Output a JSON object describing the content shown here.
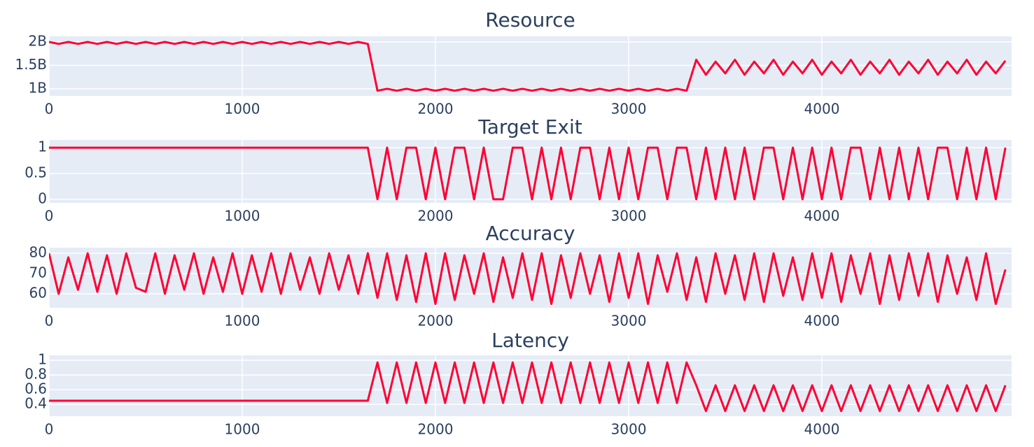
{
  "chart_data": [
    {
      "type": "line",
      "title": "Resource",
      "color": "#ff0033",
      "grid": true,
      "x": [
        0,
        50,
        100,
        150,
        200,
        250,
        300,
        350,
        400,
        450,
        500,
        550,
        600,
        650,
        700,
        750,
        800,
        850,
        900,
        950,
        1000,
        1050,
        1100,
        1150,
        1200,
        1250,
        1300,
        1350,
        1400,
        1450,
        1500,
        1550,
        1600,
        1650,
        1700,
        1750,
        1800,
        1850,
        1900,
        1950,
        2000,
        2050,
        2100,
        2150,
        2200,
        2250,
        2300,
        2350,
        2400,
        2450,
        2500,
        2550,
        2600,
        2650,
        2700,
        2750,
        2800,
        2850,
        2900,
        2950,
        3000,
        3050,
        3100,
        3150,
        3200,
        3250,
        3300,
        3350,
        3400,
        3450,
        3500,
        3550,
        3600,
        3650,
        3700,
        3750,
        3800,
        3850,
        3900,
        3950,
        4000,
        4050,
        4100,
        4150,
        4200,
        4250,
        4300,
        4350,
        4400,
        4450,
        4500,
        4550,
        4600,
        4650,
        4700,
        4750,
        4800,
        4850,
        4900,
        4950
      ],
      "values": [
        2000000000.0,
        1960000000.0,
        2000000000.0,
        1960000000.0,
        2000000000.0,
        1960000000.0,
        2000000000.0,
        1960000000.0,
        2000000000.0,
        1960000000.0,
        2000000000.0,
        1960000000.0,
        2000000000.0,
        1960000000.0,
        2000000000.0,
        1960000000.0,
        2000000000.0,
        1960000000.0,
        2000000000.0,
        1960000000.0,
        2000000000.0,
        1960000000.0,
        2000000000.0,
        1960000000.0,
        2000000000.0,
        1960000000.0,
        2000000000.0,
        1960000000.0,
        2000000000.0,
        1960000000.0,
        2000000000.0,
        1960000000.0,
        2000000000.0,
        1960000000.0,
        960000000.0,
        1000000000.0,
        960000000.0,
        1000000000.0,
        960000000.0,
        1000000000.0,
        960000000.0,
        1000000000.0,
        960000000.0,
        1000000000.0,
        960000000.0,
        1000000000.0,
        960000000.0,
        1000000000.0,
        960000000.0,
        1000000000.0,
        960000000.0,
        1000000000.0,
        960000000.0,
        1000000000.0,
        960000000.0,
        1000000000.0,
        960000000.0,
        1000000000.0,
        960000000.0,
        1000000000.0,
        960000000.0,
        1000000000.0,
        960000000.0,
        1000000000.0,
        960000000.0,
        1000000000.0,
        960000000.0,
        1620000000.0,
        1300000000.0,
        1580000000.0,
        1330000000.0,
        1620000000.0,
        1300000000.0,
        1580000000.0,
        1330000000.0,
        1620000000.0,
        1300000000.0,
        1580000000.0,
        1330000000.0,
        1620000000.0,
        1300000000.0,
        1580000000.0,
        1330000000.0,
        1620000000.0,
        1300000000.0,
        1580000000.0,
        1330000000.0,
        1620000000.0,
        1300000000.0,
        1580000000.0,
        1330000000.0,
        1620000000.0,
        1300000000.0,
        1580000000.0,
        1330000000.0,
        1620000000.0,
        1300000000.0,
        1580000000.0,
        1330000000.0,
        1600000000.0
      ],
      "xlim": [
        0,
        4982
      ],
      "xticks": [
        0,
        1000,
        2000,
        3000,
        4000
      ],
      "ylim": [
        850000000,
        2120000000
      ],
      "yticks": [
        {
          "value": 1000000000,
          "label": "1B"
        },
        {
          "value": 1500000000,
          "label": "1.5B"
        },
        {
          "value": 2000000000,
          "label": "2B"
        }
      ]
    },
    {
      "type": "line",
      "title": "Target Exit",
      "color": "#ff0033",
      "grid": true,
      "x": [
        0,
        50,
        100,
        150,
        200,
        250,
        300,
        350,
        400,
        450,
        500,
        550,
        600,
        650,
        700,
        750,
        800,
        850,
        900,
        950,
        1000,
        1050,
        1100,
        1150,
        1200,
        1250,
        1300,
        1350,
        1400,
        1450,
        1500,
        1550,
        1600,
        1650,
        1700,
        1750,
        1800,
        1850,
        1900,
        1950,
        2000,
        2050,
        2100,
        2150,
        2200,
        2250,
        2300,
        2350,
        2400,
        2450,
        2500,
        2550,
        2600,
        2650,
        2700,
        2750,
        2800,
        2850,
        2900,
        2950,
        3000,
        3050,
        3100,
        3150,
        3200,
        3250,
        3300,
        3350,
        3400,
        3450,
        3500,
        3550,
        3600,
        3650,
        3700,
        3750,
        3800,
        3850,
        3900,
        3950,
        4000,
        4050,
        4100,
        4150,
        4200,
        4250,
        4300,
        4350,
        4400,
        4450,
        4500,
        4550,
        4600,
        4650,
        4700,
        4750,
        4800,
        4850,
        4900,
        4950
      ],
      "values": [
        1,
        1,
        1,
        1,
        1,
        1,
        1,
        1,
        1,
        1,
        1,
        1,
        1,
        1,
        1,
        1,
        1,
        1,
        1,
        1,
        1,
        1,
        1,
        1,
        1,
        1,
        1,
        1,
        1,
        1,
        1,
        1,
        1,
        1,
        0,
        1,
        0,
        1,
        1,
        0,
        1,
        0,
        1,
        1,
        0,
        1,
        0,
        0,
        1,
        1,
        0,
        1,
        0,
        1,
        0,
        1,
        1,
        0,
        1,
        0,
        1,
        0,
        1,
        1,
        0,
        1,
        1,
        0,
        1,
        0,
        1,
        0,
        1,
        0,
        1,
        1,
        0,
        1,
        0,
        1,
        0,
        1,
        0,
        1,
        1,
        0,
        1,
        0,
        1,
        0,
        1,
        0,
        1,
        1,
        0,
        1,
        0,
        1,
        0,
        1
      ],
      "xlim": [
        0,
        4982
      ],
      "xticks": [
        0,
        1000,
        2000,
        3000,
        4000
      ],
      "ylim": [
        -0.07,
        1.15
      ],
      "yticks": [
        0,
        0.5,
        1
      ]
    },
    {
      "type": "line",
      "title": "Accuracy",
      "color": "#ff0033",
      "grid": true,
      "x": [
        0,
        50,
        100,
        150,
        200,
        250,
        300,
        350,
        400,
        450,
        500,
        550,
        600,
        650,
        700,
        750,
        800,
        850,
        900,
        950,
        1000,
        1050,
        1100,
        1150,
        1200,
        1250,
        1300,
        1350,
        1400,
        1450,
        1500,
        1550,
        1600,
        1650,
        1700,
        1750,
        1800,
        1850,
        1900,
        1950,
        2000,
        2050,
        2100,
        2150,
        2200,
        2250,
        2300,
        2350,
        2400,
        2450,
        2500,
        2550,
        2600,
        2650,
        2700,
        2750,
        2800,
        2850,
        2900,
        2950,
        3000,
        3050,
        3100,
        3150,
        3200,
        3250,
        3300,
        3350,
        3400,
        3450,
        3500,
        3550,
        3600,
        3650,
        3700,
        3750,
        3800,
        3850,
        3900,
        3950,
        4000,
        4050,
        4100,
        4150,
        4200,
        4250,
        4300,
        4350,
        4400,
        4450,
        4500,
        4550,
        4600,
        4650,
        4700,
        4750,
        4800,
        4850,
        4900,
        4950
      ],
      "values": [
        80,
        60,
        78,
        62,
        80,
        61,
        79,
        60,
        80,
        63,
        61,
        80,
        60,
        79,
        62,
        80,
        60,
        78,
        61,
        80,
        60,
        79,
        61,
        80,
        60,
        80,
        62,
        78,
        60,
        80,
        62,
        79,
        60,
        80,
        58,
        80,
        57,
        79,
        56,
        80,
        55,
        80,
        57,
        79,
        60,
        80,
        56,
        78,
        58,
        80,
        57,
        80,
        55,
        79,
        58,
        80,
        60,
        79,
        56,
        80,
        58,
        80,
        55,
        79,
        61,
        80,
        57,
        78,
        56,
        80,
        60,
        79,
        57,
        80,
        56,
        80,
        59,
        78,
        57,
        80,
        58,
        80,
        56,
        79,
        60,
        80,
        55,
        79,
        57,
        80,
        59,
        80,
        56,
        79,
        60,
        78,
        57,
        80,
        55,
        72
      ],
      "xlim": [
        0,
        4982
      ],
      "xticks": [
        0,
        1000,
        2000,
        3000,
        4000
      ],
      "ylim": [
        53.1,
        82.8
      ],
      "yticks": [
        60,
        70,
        80
      ]
    },
    {
      "type": "line",
      "title": "Latency",
      "color": "#ff0033",
      "grid": true,
      "x": [
        0,
        50,
        100,
        150,
        200,
        250,
        300,
        350,
        400,
        450,
        500,
        550,
        600,
        650,
        700,
        750,
        800,
        850,
        900,
        950,
        1000,
        1050,
        1100,
        1150,
        1200,
        1250,
        1300,
        1350,
        1400,
        1450,
        1500,
        1550,
        1600,
        1650,
        1700,
        1750,
        1800,
        1850,
        1900,
        1950,
        2000,
        2050,
        2100,
        2150,
        2200,
        2250,
        2300,
        2350,
        2400,
        2450,
        2500,
        2550,
        2600,
        2650,
        2700,
        2750,
        2800,
        2850,
        2900,
        2950,
        3000,
        3050,
        3100,
        3150,
        3200,
        3250,
        3300,
        3350,
        3400,
        3450,
        3500,
        3550,
        3600,
        3650,
        3700,
        3750,
        3800,
        3850,
        3900,
        3950,
        4000,
        4050,
        4100,
        4150,
        4200,
        4250,
        4300,
        4350,
        4400,
        4450,
        4500,
        4550,
        4600,
        4650,
        4700,
        4750,
        4800,
        4850,
        4900,
        4950
      ],
      "values": [
        0.45,
        0.45,
        0.45,
        0.45,
        0.45,
        0.45,
        0.45,
        0.45,
        0.45,
        0.45,
        0.45,
        0.45,
        0.45,
        0.45,
        0.45,
        0.45,
        0.45,
        0.45,
        0.45,
        0.45,
        0.45,
        0.45,
        0.45,
        0.45,
        0.45,
        0.45,
        0.45,
        0.45,
        0.45,
        0.45,
        0.45,
        0.45,
        0.45,
        0.45,
        0.97,
        0.42,
        0.97,
        0.42,
        0.97,
        0.42,
        0.97,
        0.42,
        0.97,
        0.42,
        0.97,
        0.42,
        0.97,
        0.42,
        0.97,
        0.42,
        0.97,
        0.42,
        0.97,
        0.42,
        0.97,
        0.42,
        0.97,
        0.42,
        0.97,
        0.42,
        0.97,
        0.42,
        0.97,
        0.42,
        0.97,
        0.42,
        0.97,
        0.66,
        0.31,
        0.66,
        0.31,
        0.66,
        0.31,
        0.66,
        0.31,
        0.66,
        0.31,
        0.66,
        0.31,
        0.66,
        0.31,
        0.66,
        0.31,
        0.66,
        0.31,
        0.66,
        0.31,
        0.66,
        0.31,
        0.66,
        0.31,
        0.66,
        0.31,
        0.66,
        0.31,
        0.66,
        0.31,
        0.66,
        0.31,
        0.66
      ],
      "xlim": [
        0,
        4982
      ],
      "xticks": [
        0,
        1000,
        2000,
        3000,
        4000
      ],
      "ylim": [
        0.24,
        1.067
      ],
      "yticks": [
        0.4,
        0.6,
        0.8,
        1
      ]
    }
  ]
}
